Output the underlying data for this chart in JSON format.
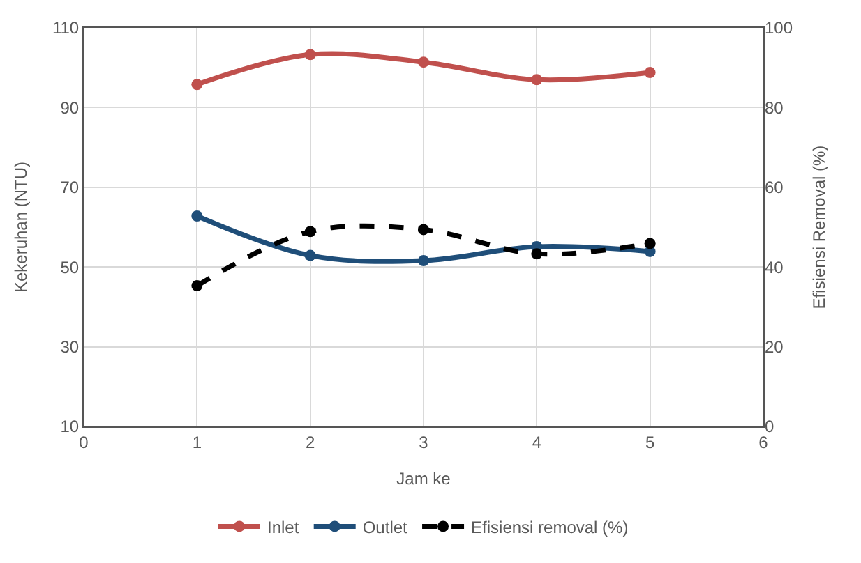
{
  "chart_data": {
    "type": "line",
    "xlabel": "Jam ke",
    "ylabel": "Kekeruhan (NTU)",
    "y2label": "Efisiensi Removal (%)",
    "x": [
      1,
      2,
      3,
      4,
      5
    ],
    "series": [
      {
        "name": "Inlet",
        "color": "#c0504d",
        "values": [
          95.8,
          103.3,
          101.4,
          97,
          98.8
        ]
      },
      {
        "name": "Outlet",
        "color": "#1f4e79",
        "values": [
          62.8,
          52.9,
          51.6,
          55.1,
          53.9
        ]
      },
      {
        "name": "Efisiensi removal (%)",
        "color": "#000000",
        "axis": "y2",
        "line_style": "dashed",
        "values": [
          35.3,
          48.9,
          49.4,
          43.3,
          45.9
        ]
      }
    ],
    "xlim": [
      0,
      6
    ],
    "xticks": [
      0,
      1,
      2,
      3,
      4,
      5,
      6
    ],
    "ylim": [
      10,
      110
    ],
    "yticks": [
      10,
      30,
      50,
      70,
      90,
      110
    ],
    "y2lim": [
      0,
      100
    ],
    "y2ticks": [
      0,
      20,
      40,
      60,
      80,
      100
    ],
    "grid": true,
    "legend": "bottom",
    "marker": "circle",
    "line_style": "solid"
  }
}
